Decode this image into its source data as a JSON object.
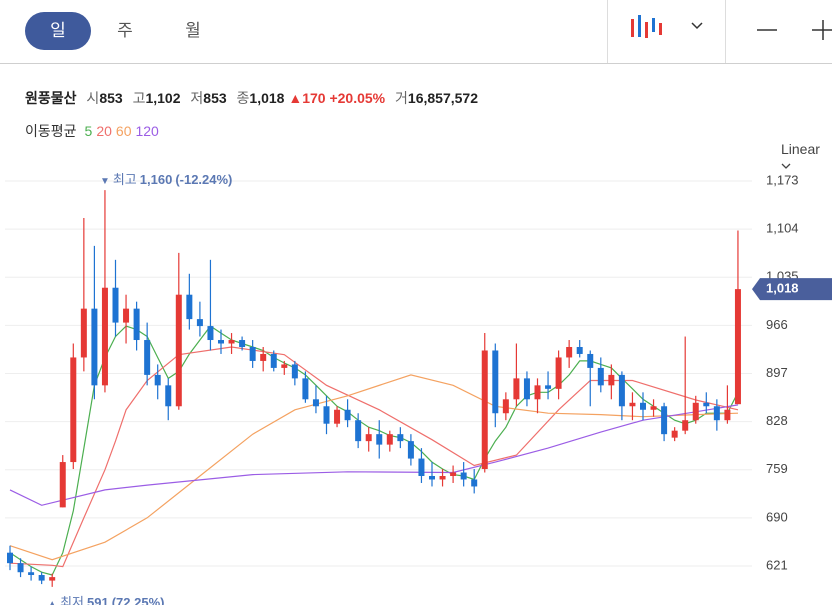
{
  "header": {
    "tabs": [
      "일",
      "주",
      "월"
    ],
    "selected_tab": 0
  },
  "quote": {
    "name": "원풍물산",
    "open_label": "시",
    "open": "853",
    "high_label": "고",
    "high": "1,102",
    "low_label": "저",
    "low": "853",
    "close_label": "종",
    "close": "1,018",
    "arrow": "▲",
    "change": "170",
    "change_pct": "+20.05%",
    "volume_label": "거",
    "volume": "16,857,572"
  },
  "ma_legend": {
    "title": "이동평균",
    "items": [
      "5",
      "20",
      "60",
      "120"
    ]
  },
  "scale_label": "Linear",
  "chart_data": {
    "type": "candlestick",
    "up_color": "#e53935",
    "down_color": "#1e73d2",
    "ylim": [
      565,
      1196
    ],
    "yticks": [
      {
        "value": 1173,
        "label": "1,173"
      },
      {
        "value": 1104,
        "label": "1,104"
      },
      {
        "value": 1035,
        "label": "1,035"
      },
      966,
      897,
      828,
      759,
      690,
      621
    ],
    "grid": true,
    "candles": [
      [
        640,
        650,
        615,
        625
      ],
      [
        625,
        632,
        605,
        612
      ],
      [
        612,
        620,
        600,
        608
      ],
      [
        608,
        612,
        595,
        600
      ],
      [
        600,
        610,
        591,
        605
      ],
      [
        705,
        780,
        705,
        770
      ],
      [
        770,
        940,
        760,
        920
      ],
      [
        920,
        1120,
        900,
        990
      ],
      [
        990,
        1080,
        860,
        880
      ],
      [
        880,
        1160,
        870,
        1020
      ],
      [
        1020,
        1060,
        950,
        970
      ],
      [
        970,
        1010,
        940,
        990
      ],
      [
        990,
        1000,
        930,
        945
      ],
      [
        945,
        970,
        880,
        895
      ],
      [
        895,
        910,
        860,
        880
      ],
      [
        880,
        890,
        830,
        850
      ],
      [
        850,
        1070,
        845,
        1010
      ],
      [
        1010,
        1040,
        960,
        975
      ],
      [
        975,
        1000,
        950,
        965
      ],
      [
        965,
        1060,
        930,
        945
      ],
      [
        945,
        960,
        925,
        940
      ],
      [
        940,
        955,
        925,
        945
      ],
      [
        945,
        950,
        930,
        935
      ],
      [
        935,
        945,
        905,
        915
      ],
      [
        915,
        935,
        900,
        925
      ],
      [
        925,
        930,
        900,
        905
      ],
      [
        905,
        915,
        895,
        910
      ],
      [
        910,
        915,
        880,
        890
      ],
      [
        890,
        900,
        855,
        860
      ],
      [
        860,
        880,
        840,
        850
      ],
      [
        850,
        865,
        810,
        825
      ],
      [
        825,
        850,
        820,
        845
      ],
      [
        845,
        860,
        820,
        830
      ],
      [
        830,
        840,
        790,
        800
      ],
      [
        800,
        820,
        785,
        810
      ],
      [
        810,
        830,
        775,
        795
      ],
      [
        795,
        815,
        785,
        810
      ],
      [
        810,
        820,
        790,
        800
      ],
      [
        800,
        810,
        765,
        775
      ],
      [
        775,
        790,
        740,
        750
      ],
      [
        750,
        770,
        735,
        745
      ],
      [
        745,
        760,
        735,
        750
      ],
      [
        750,
        765,
        740,
        755
      ],
      [
        755,
        770,
        735,
        745
      ],
      [
        745,
        760,
        725,
        735
      ],
      [
        760,
        955,
        755,
        930
      ],
      [
        930,
        940,
        820,
        840
      ],
      [
        840,
        870,
        830,
        860
      ],
      [
        860,
        940,
        850,
        890
      ],
      [
        890,
        900,
        850,
        860
      ],
      [
        860,
        890,
        840,
        880
      ],
      [
        880,
        900,
        860,
        875
      ],
      [
        875,
        930,
        860,
        920
      ],
      [
        920,
        945,
        905,
        935
      ],
      [
        935,
        945,
        920,
        925
      ],
      [
        925,
        930,
        850,
        905
      ],
      [
        905,
        920,
        870,
        880
      ],
      [
        880,
        910,
        860,
        895
      ],
      [
        895,
        900,
        830,
        850
      ],
      [
        850,
        870,
        830,
        855
      ],
      [
        855,
        870,
        830,
        845
      ],
      [
        845,
        860,
        835,
        850
      ],
      [
        850,
        855,
        800,
        810
      ],
      [
        805,
        820,
        800,
        815
      ],
      [
        815,
        950,
        810,
        830
      ],
      [
        830,
        865,
        825,
        855
      ],
      [
        855,
        870,
        840,
        850
      ],
      [
        850,
        860,
        815,
        830
      ],
      [
        830,
        880,
        825,
        845
      ],
      [
        853,
        1102,
        853,
        1018
      ]
    ],
    "moving_averages": [
      {
        "name": "5",
        "color": "#4caf50",
        "x": [
          0,
          1,
          2,
          3,
          4,
          5,
          6,
          7,
          8,
          9,
          10,
          11,
          12,
          13,
          14,
          15,
          16,
          17,
          18,
          19,
          20,
          21,
          22,
          23,
          24,
          25,
          26,
          27,
          28,
          29,
          30,
          31,
          32,
          33,
          34,
          35,
          36,
          37,
          38,
          39,
          40,
          41,
          42,
          43,
          44,
          45,
          46,
          47,
          48,
          49,
          50,
          51,
          52,
          53,
          54,
          55,
          56,
          57,
          58,
          59,
          60,
          61,
          62,
          63,
          64,
          65,
          66,
          67,
          68,
          69
        ],
        "values": [
          640,
          630,
          620,
          612,
          608,
          640,
          700,
          790,
          880,
          920,
          950,
          965,
          960,
          950,
          920,
          890,
          900,
          925,
          945,
          965,
          955,
          945,
          940,
          935,
          930,
          920,
          912,
          905,
          895,
          880,
          865,
          850,
          842,
          830,
          820,
          815,
          808,
          805,
          798,
          785,
          770,
          760,
          752,
          750,
          745,
          775,
          800,
          820,
          850,
          865,
          870,
          870,
          880,
          895,
          915,
          915,
          910,
          905,
          890,
          875,
          860,
          850,
          840,
          830,
          825,
          830,
          840,
          840,
          840,
          870
        ]
      },
      {
        "name": "20",
        "color": "#ef6f6c",
        "x": [
          0,
          4,
          5,
          7,
          9,
          10,
          11,
          13,
          16,
          21,
          26,
          30,
          35,
          40,
          44,
          48,
          52,
          55,
          59,
          65,
          69
        ],
        "values": [
          625,
          622,
          620,
          690,
          759,
          800,
          845,
          887,
          924,
          935,
          924,
          880,
          845,
          802,
          765,
          780,
          845,
          887,
          887,
          859,
          845
        ]
      },
      {
        "name": "60",
        "color": "#f4a261",
        "x": [
          0,
          4,
          9,
          13,
          18,
          23,
          27,
          32,
          38,
          42,
          46,
          51,
          56,
          60,
          65,
          69
        ],
        "values": [
          650,
          630,
          655,
          690,
          750,
          810,
          845,
          865,
          895,
          880,
          850,
          840,
          838,
          835,
          838,
          840
        ]
      },
      {
        "name": "120",
        "color": "#9b5de5",
        "x": [
          0,
          3,
          9,
          13,
          23,
          32,
          42,
          46,
          51,
          56,
          60,
          65,
          69
        ],
        "values": [
          730,
          708,
          730,
          737,
          752,
          756,
          755,
          770,
          790,
          813,
          830,
          842,
          852
        ]
      }
    ],
    "annotations": [
      {
        "arrow": "▼",
        "label": "최고",
        "value": 1160,
        "value_label": "1,160",
        "change": "(-12.24%)",
        "candle": 9
      },
      {
        "arrow": "▲",
        "label": "최저",
        "value": 591,
        "value_label": "591",
        "change": "(72.25%)",
        "candle": 4
      }
    ],
    "current_price": {
      "value": 1018,
      "label": "1,018"
    }
  }
}
